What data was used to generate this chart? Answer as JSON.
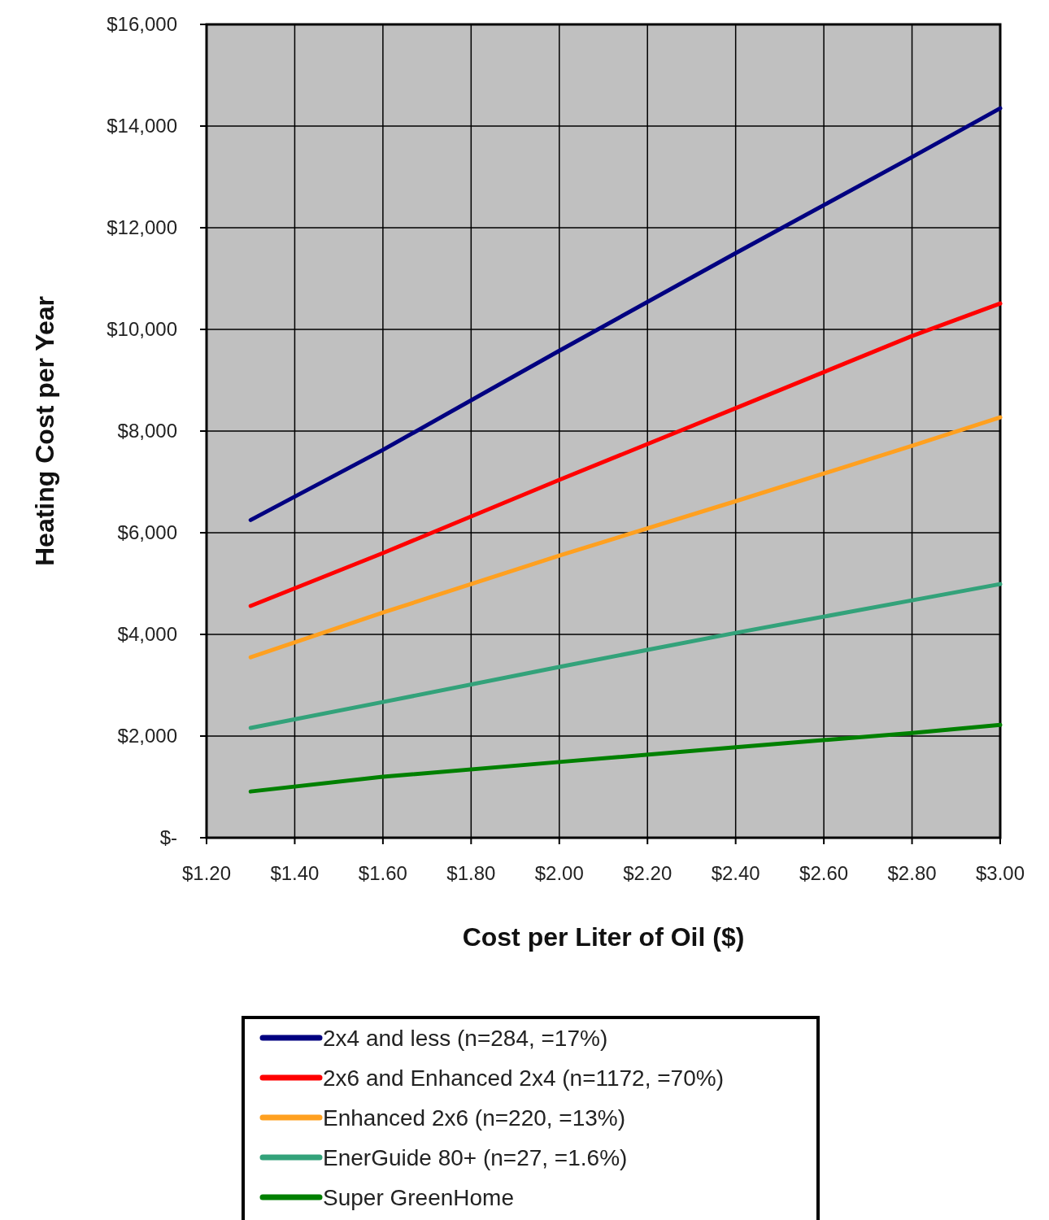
{
  "chart_data": {
    "type": "line",
    "xlabel": "Cost per Liter of Oil  ($)",
    "ylabel": "Heating Cost per Year",
    "x": [
      1.3,
      1.6,
      2.0,
      2.4,
      2.8,
      3.0
    ],
    "series": [
      {
        "name": "2x4 and less  (n=284, =17%)",
        "color": "#000080",
        "values": [
          6250,
          7630,
          9580,
          11500,
          13390,
          14350
        ]
      },
      {
        "name": "2x6 and Enhanced 2x4 (n=1172, =70%)",
        "color": "#ff0000",
        "values": [
          4560,
          5600,
          7040,
          8450,
          9870,
          10510
        ]
      },
      {
        "name": "Enhanced 2x6 (n=220, =13%)",
        "color": "#ffa020",
        "values": [
          3550,
          4430,
          5550,
          6620,
          7710,
          8270
        ]
      },
      {
        "name": "EnerGuide 80+ (n=27, =1.6%)",
        "color": "#33a27a",
        "values": [
          2160,
          2670,
          3360,
          4030,
          4670,
          4990
        ]
      },
      {
        "name": "Super GreenHome",
        "color": "#008000",
        "values": [
          910,
          1200,
          1490,
          1780,
          2060,
          2220
        ]
      }
    ],
    "xlim": [
      1.2,
      3.0
    ],
    "xticks": [
      {
        "value": 1.2,
        "label": "$1.20"
      },
      {
        "value": 1.4,
        "label": "$1.40"
      },
      {
        "value": 1.6,
        "label": "$1.60"
      },
      {
        "value": 1.8,
        "label": "$1.80"
      },
      {
        "value": 2.0,
        "label": "$2.00"
      },
      {
        "value": 2.2,
        "label": "$2.20"
      },
      {
        "value": 2.4,
        "label": "$2.40"
      },
      {
        "value": 2.6,
        "label": "$2.60"
      },
      {
        "value": 2.8,
        "label": "$2.80"
      },
      {
        "value": 3.0,
        "label": "$3.00"
      }
    ],
    "ylim": [
      0,
      16000
    ],
    "yticks": [
      {
        "value": 0,
        "label": "$-"
      },
      {
        "value": 2000,
        "label": "$2,000"
      },
      {
        "value": 4000,
        "label": "$4,000"
      },
      {
        "value": 6000,
        "label": "$6,000"
      },
      {
        "value": 8000,
        "label": "$8,000"
      },
      {
        "value": 10000,
        "label": "$10,000"
      },
      {
        "value": 12000,
        "label": "$12,000"
      },
      {
        "value": 14000,
        "label": "$14,000"
      },
      {
        "value": 16000,
        "label": "$16,000"
      }
    ],
    "grid": true,
    "legend": "bottom",
    "marker": "none",
    "line_style": "solid"
  }
}
